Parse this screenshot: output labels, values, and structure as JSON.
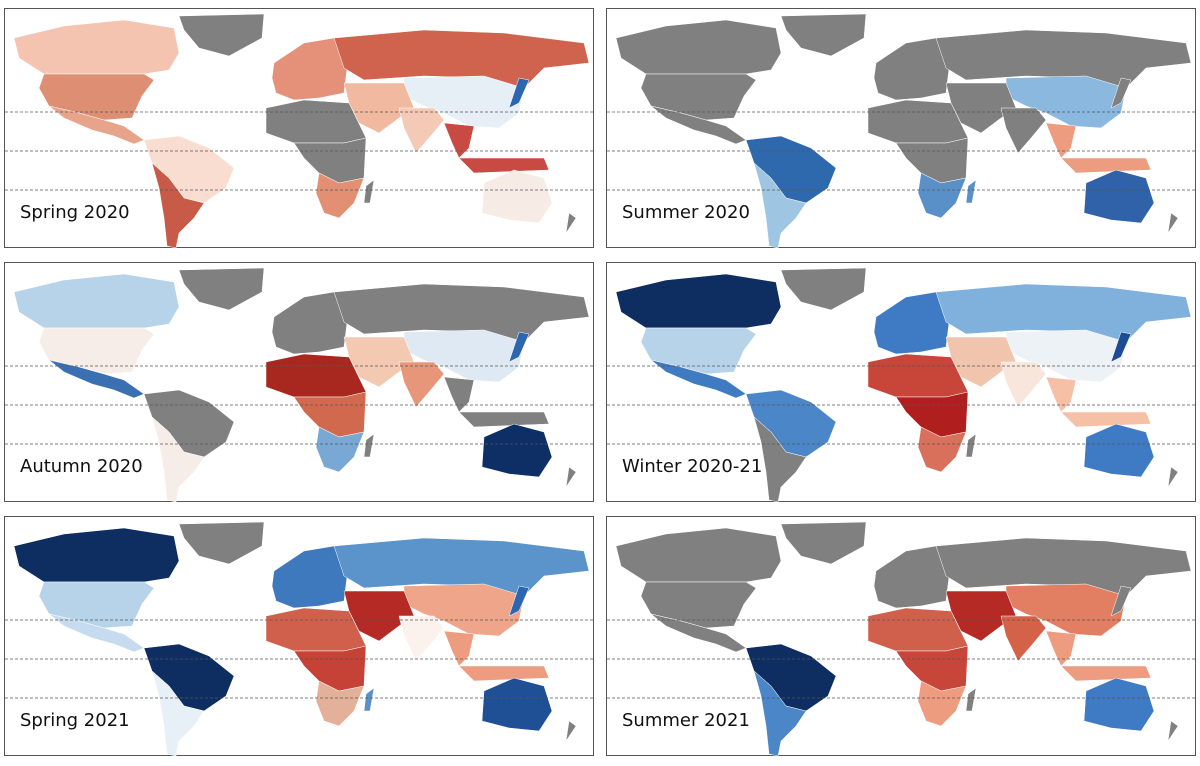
{
  "panels": [
    {
      "label": "Spring 2020"
    },
    {
      "label": "Summer 2020"
    },
    {
      "label": "Autumn 2020"
    },
    {
      "label": "Winter 2020-21"
    },
    {
      "label": "Spring 2021"
    },
    {
      "label": "Summer 2021"
    }
  ]
}
